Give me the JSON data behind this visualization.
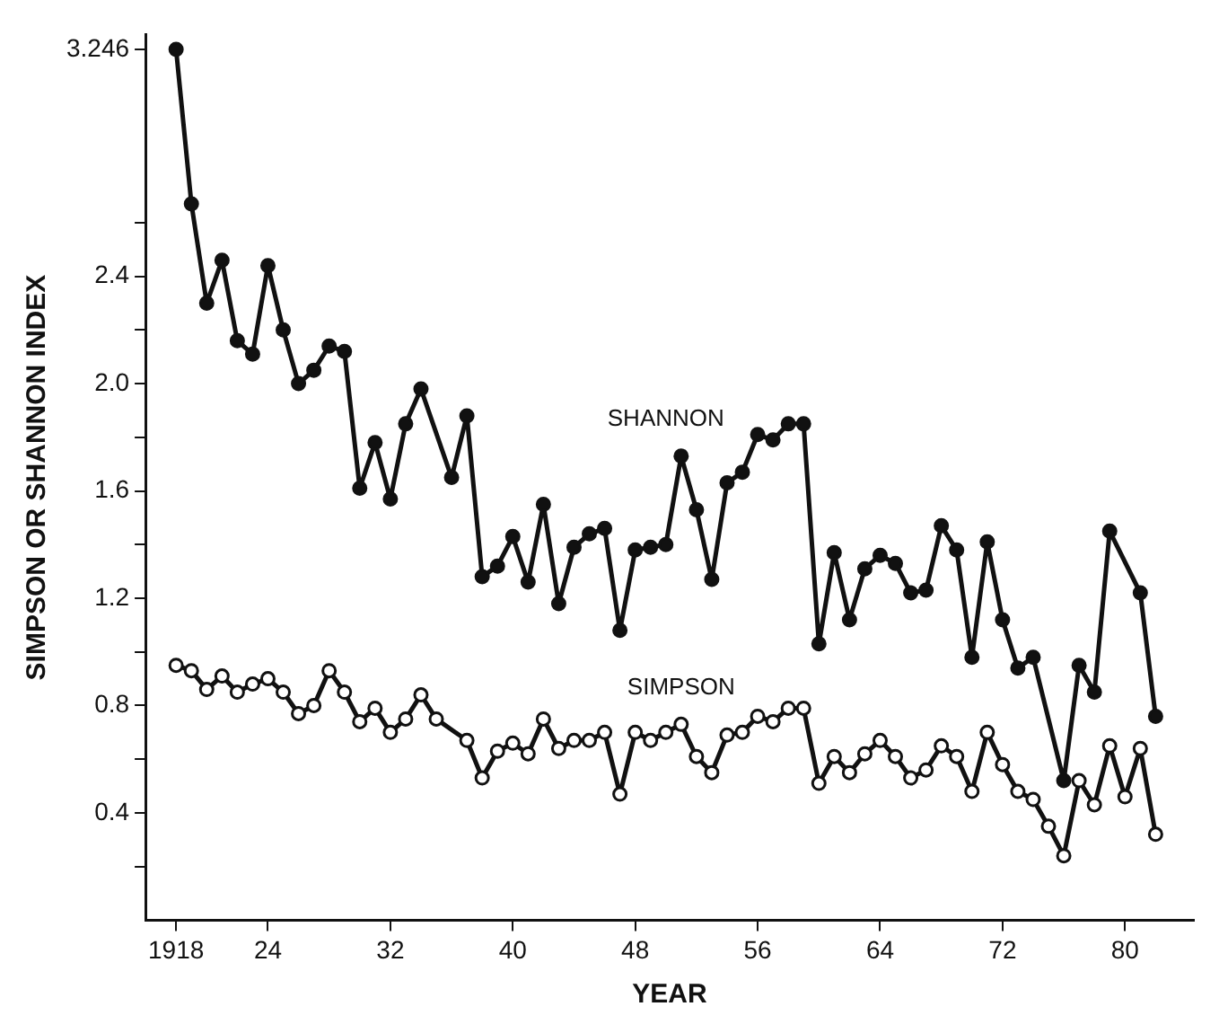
{
  "chart_data": {
    "type": "line",
    "xlabel": "YEAR",
    "ylabel": "SIMPSON OR SHANNON INDEX",
    "series": [
      {
        "name": "SHANNON",
        "color": "#111111",
        "x": [
          1918,
          1919,
          1920,
          1921,
          1922,
          1923,
          1924,
          1925,
          1926,
          1927,
          1928,
          1929,
          1930,
          1931,
          1932,
          1933,
          1934,
          1936,
          1937,
          1938,
          1939,
          1940,
          1941,
          1942,
          1943,
          1944,
          1945,
          1946,
          1947,
          1948,
          1949,
          1950,
          1951,
          1952,
          1953,
          1954,
          1955,
          1956,
          1957,
          1958,
          1959,
          1960,
          1961,
          1962,
          1963,
          1964,
          1965,
          1966,
          1967,
          1968,
          1969,
          1970,
          1971,
          1972,
          1973,
          1974,
          1976,
          1977,
          1978,
          1979,
          1981,
          1982
        ],
        "values": [
          3.246,
          2.67,
          2.3,
          2.46,
          2.16,
          2.11,
          2.44,
          2.2,
          2.0,
          2.05,
          2.14,
          2.12,
          1.61,
          1.78,
          1.57,
          1.85,
          1.98,
          1.65,
          1.88,
          1.28,
          1.32,
          1.43,
          1.26,
          1.55,
          1.18,
          1.39,
          1.44,
          1.46,
          1.08,
          1.38,
          1.39,
          1.4,
          1.73,
          1.53,
          1.27,
          1.63,
          1.67,
          1.81,
          1.79,
          1.85,
          1.85,
          1.03,
          1.37,
          1.12,
          1.31,
          1.36,
          1.33,
          1.22,
          1.23,
          1.47,
          1.38,
          0.98,
          1.41,
          1.12,
          0.94,
          0.98,
          0.52,
          0.95,
          0.85,
          1.45,
          1.22,
          0.76
        ]
      },
      {
        "name": "SIMPSON",
        "color": "#111111",
        "x": [
          1918,
          1919,
          1920,
          1921,
          1922,
          1923,
          1924,
          1925,
          1926,
          1927,
          1928,
          1929,
          1930,
          1931,
          1932,
          1933,
          1934,
          1935,
          1937,
          1938,
          1939,
          1940,
          1941,
          1942,
          1943,
          1944,
          1945,
          1946,
          1947,
          1948,
          1949,
          1950,
          1951,
          1952,
          1953,
          1954,
          1955,
          1956,
          1957,
          1958,
          1959,
          1960,
          1961,
          1962,
          1963,
          1964,
          1965,
          1966,
          1967,
          1968,
          1969,
          1970,
          1971,
          1972,
          1973,
          1974,
          1975,
          1976,
          1977,
          1978,
          1979,
          1980,
          1981,
          1982
        ],
        "values": [
          0.95,
          0.93,
          0.86,
          0.91,
          0.85,
          0.88,
          0.9,
          0.85,
          0.77,
          0.8,
          0.93,
          0.85,
          0.74,
          0.79,
          0.7,
          0.75,
          0.84,
          0.75,
          0.67,
          0.53,
          0.63,
          0.66,
          0.62,
          0.75,
          0.64,
          0.67,
          0.67,
          0.7,
          0.47,
          0.7,
          0.67,
          0.7,
          0.73,
          0.61,
          0.55,
          0.69,
          0.7,
          0.76,
          0.74,
          0.79,
          0.79,
          0.51,
          0.61,
          0.55,
          0.62,
          0.67,
          0.61,
          0.53,
          0.56,
          0.65,
          0.61,
          0.48,
          0.7,
          0.58,
          0.48,
          0.45,
          0.35,
          0.24,
          0.52,
          0.43,
          0.65,
          0.46,
          0.64,
          0.32
        ]
      }
    ],
    "xlim": [
      1916,
      1984.5
    ],
    "xticks": [
      1918,
      {
        "value": 1924,
        "label": "24"
      },
      {
        "value": 1932,
        "label": "32"
      },
      {
        "value": 1940,
        "label": "40"
      },
      {
        "value": 1948,
        "label": "48"
      },
      {
        "value": 1956,
        "label": "56"
      },
      {
        "value": 1964,
        "label": "64"
      },
      {
        "value": 1972,
        "label": "72"
      },
      {
        "value": 1980,
        "label": "80"
      }
    ],
    "ylim": [
      0,
      3.3
    ],
    "yticks": [
      {
        "value": 0.2,
        "label": null
      },
      0.4,
      {
        "value": 0.6,
        "label": null
      },
      0.8,
      {
        "value": 1.0,
        "label": null
      },
      1.2,
      {
        "value": 1.4,
        "label": null
      },
      1.6,
      {
        "value": 1.8,
        "label": null
      },
      {
        "value": 2.0,
        "label": "2.0"
      },
      {
        "value": 2.2,
        "label": null
      },
      2.4,
      {
        "value": 2.6,
        "label": null
      },
      3.246
    ],
    "grid": false,
    "legend": false,
    "marker": "circle",
    "line_style": "solid"
  }
}
